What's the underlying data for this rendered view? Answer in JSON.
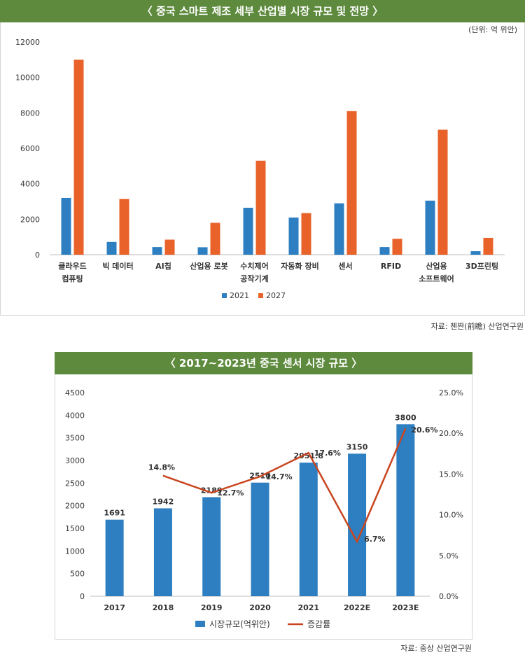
{
  "chart1": {
    "banner": "〈 중국 스마트 제조 세부 산업별 시장 규모 및 전망 〉",
    "unit_note": "(단위: 억 위안)",
    "source": "자료: 첸짠(前瞻) 산업연구원"
  },
  "chart2": {
    "banner": "〈 2017~2023년 중국 센서 시장 규모 〉",
    "source": "자료: 중상 산업연구원"
  },
  "chart_data": [
    {
      "type": "bar",
      "title": "〈 중국 스마트 제조 세부 산업별 시장 규모 및 전망 〉",
      "categories": [
        "클라우드\n컴퓨팅",
        "빅 데이터",
        "AI칩",
        "산업용 로봇",
        "수치제어\n공작기계",
        "자동화 장비",
        "센서",
        "RFID",
        "산업용\n소프트웨어",
        "3D프린팅"
      ],
      "series": [
        {
          "name": "2021",
          "color": "#2e7fc1",
          "values": [
            3200,
            720,
            430,
            420,
            2650,
            2100,
            2900,
            430,
            3050,
            200
          ]
        },
        {
          "name": "2027",
          "color": "#e8622a",
          "values": [
            11000,
            3150,
            850,
            1800,
            5300,
            2350,
            8100,
            900,
            7050,
            950
          ]
        }
      ],
      "y_ticks": [
        "0",
        "2000",
        "4000",
        "6000",
        "8000",
        "10000",
        "12000"
      ],
      "ylim": [
        0,
        12000
      ],
      "legend": "bottom",
      "grid": false
    },
    {
      "type": "bar",
      "title": "〈 2017~2023년 중국 센서 시장 규모 〉",
      "categories": [
        "2017",
        "2018",
        "2019",
        "2020",
        "2021",
        "2022E",
        "2023E"
      ],
      "series": [
        {
          "name": "시장규모(억위안)",
          "type": "bar",
          "axis": "left",
          "color": "#2e7fc1",
          "values": [
            1691,
            1942,
            2189,
            2510,
            2951.8,
            3150,
            3800
          ],
          "labels": [
            "1691",
            "1942",
            "2189",
            "2510",
            "2951.8",
            "3150",
            "3800"
          ]
        },
        {
          "name": "증감률",
          "type": "line",
          "axis": "right",
          "color": "#c9451f",
          "values": [
            null,
            14.8,
            12.7,
            14.7,
            17.6,
            6.7,
            20.6
          ],
          "labels": [
            "",
            "14.8%",
            "12.7%",
            "14.7%",
            "17.6%",
            "6.7%",
            "20.6%"
          ]
        }
      ],
      "y_ticks": [
        "0",
        "500",
        "1000",
        "1500",
        "2000",
        "2500",
        "3000",
        "3500",
        "4000",
        "4500"
      ],
      "ylim": [
        0,
        4500
      ],
      "y2_ticks": [
        "0.0%",
        "5.0%",
        "10.0%",
        "15.0%",
        "20.0%",
        "25.0%"
      ],
      "y2lim": [
        0,
        25
      ],
      "legend": "bottom",
      "grid": false
    }
  ]
}
